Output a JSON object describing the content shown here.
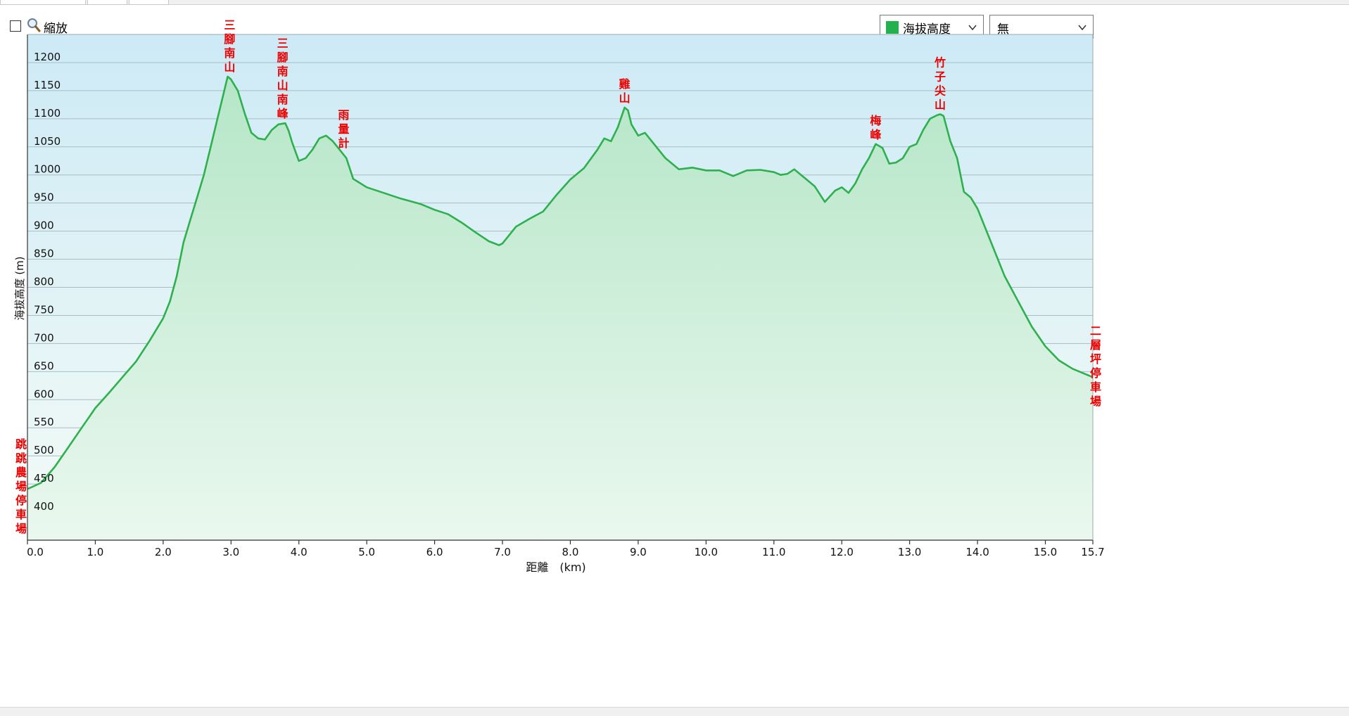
{
  "toolbar": {
    "zoom_label": "縮放",
    "series_select": {
      "value": "海拔高度",
      "swatch_color": "#22b14c"
    },
    "secondary_select": {
      "value": "無"
    }
  },
  "colors": {
    "line": "#2eb04e",
    "fill_top": "#b5e6c7",
    "fill_bottom": "#eaf8ef",
    "bg_top": "#cdeaf6",
    "bg_bottom": "#f4fbf6",
    "grid": "#a9bcc4",
    "label_red": "#ee0000"
  },
  "chart_data": {
    "type": "area",
    "xlabel": "距離　(km)",
    "ylabel": "海拔高度 (m)",
    "xlim": [
      0,
      15.7
    ],
    "ylim": [
      350,
      1250
    ],
    "grid": true,
    "x_ticks": [
      "0.0",
      "1.0",
      "2.0",
      "3.0",
      "4.0",
      "5.0",
      "6.0",
      "7.0",
      "8.0",
      "9.0",
      "10.0",
      "11.0",
      "12.0",
      "13.0",
      "14.0",
      "15.0",
      "15.7"
    ],
    "y_ticks": [
      "400",
      "450",
      "500",
      "550",
      "600",
      "650",
      "700",
      "750",
      "800",
      "850",
      "900",
      "950",
      "1000",
      "1050",
      "1100",
      "1150",
      "1200"
    ],
    "series": [
      {
        "x": [
          0.0,
          0.2,
          0.4,
          0.6,
          0.8,
          1.0,
          1.2,
          1.4,
          1.6,
          1.8,
          2.0,
          2.1,
          2.2,
          2.3,
          2.4,
          2.5,
          2.6,
          2.7,
          2.8,
          2.9,
          2.95,
          3.0,
          3.1,
          3.2,
          3.3,
          3.4,
          3.5,
          3.6,
          3.7,
          3.8,
          3.85,
          3.9,
          4.0,
          4.1,
          4.2,
          4.3,
          4.4,
          4.5,
          4.6,
          4.7,
          4.8,
          5.0,
          5.2,
          5.5,
          5.8,
          6.0,
          6.2,
          6.4,
          6.6,
          6.8,
          6.95,
          7.0,
          7.1,
          7.2,
          7.4,
          7.6,
          7.8,
          8.0,
          8.2,
          8.4,
          8.5,
          8.6,
          8.7,
          8.8,
          8.85,
          8.9,
          9.0,
          9.1,
          9.2,
          9.4,
          9.6,
          9.8,
          10.0,
          10.2,
          10.4,
          10.6,
          10.8,
          11.0,
          11.1,
          11.2,
          11.3,
          11.4,
          11.5,
          11.6,
          11.75,
          11.9,
          12.0,
          12.1,
          12.2,
          12.3,
          12.4,
          12.5,
          12.6,
          12.7,
          12.8,
          12.9,
          13.0,
          13.1,
          13.2,
          13.3,
          13.4,
          13.45,
          13.5,
          13.6,
          13.7,
          13.8,
          13.9,
          14.0,
          14.2,
          14.4,
          14.6,
          14.8,
          15.0,
          15.2,
          15.4,
          15.7
        ],
        "y": [
          441,
          452,
          480,
          515,
          550,
          585,
          612,
          640,
          668,
          705,
          745,
          775,
          820,
          880,
          920,
          960,
          1000,
          1050,
          1100,
          1150,
          1175,
          1170,
          1150,
          1110,
          1075,
          1065,
          1063,
          1080,
          1090,
          1092,
          1078,
          1058,
          1025,
          1030,
          1045,
          1065,
          1070,
          1060,
          1045,
          1030,
          993,
          978,
          970,
          958,
          948,
          938,
          930,
          915,
          898,
          882,
          875,
          878,
          893,
          908,
          922,
          935,
          965,
          992,
          1012,
          1045,
          1065,
          1060,
          1085,
          1120,
          1115,
          1090,
          1070,
          1075,
          1060,
          1030,
          1010,
          1013,
          1008,
          1008,
          998,
          1008,
          1009,
          1005,
          1000,
          1002,
          1010,
          1000,
          990,
          980,
          952,
          972,
          978,
          968,
          985,
          1010,
          1030,
          1055,
          1048,
          1020,
          1022,
          1030,
          1050,
          1055,
          1080,
          1100,
          1106,
          1108,
          1105,
          1060,
          1030,
          970,
          960,
          940,
          880,
          820,
          775,
          730,
          695,
          670,
          655,
          640
        ]
      }
    ],
    "annotations": [
      {
        "text": "三腳南山",
        "x": 2.98,
        "y": 1175
      },
      {
        "text": "三腳南山南峰",
        "x": 3.76,
        "y": 1092
      },
      {
        "text": "雨量計",
        "x": 4.66,
        "y": 1040
      },
      {
        "text": "雞山",
        "x": 8.8,
        "y": 1120
      },
      {
        "text": "梅峰",
        "x": 12.5,
        "y": 1055
      },
      {
        "text": "竹子尖山",
        "x": 13.45,
        "y": 1108
      },
      {
        "text": "跳跳農場停車場",
        "x": 0.0,
        "y": 441,
        "anchor": "start"
      },
      {
        "text": "二層坪停車場",
        "x": 15.7,
        "y": 640,
        "anchor": "end"
      }
    ]
  }
}
